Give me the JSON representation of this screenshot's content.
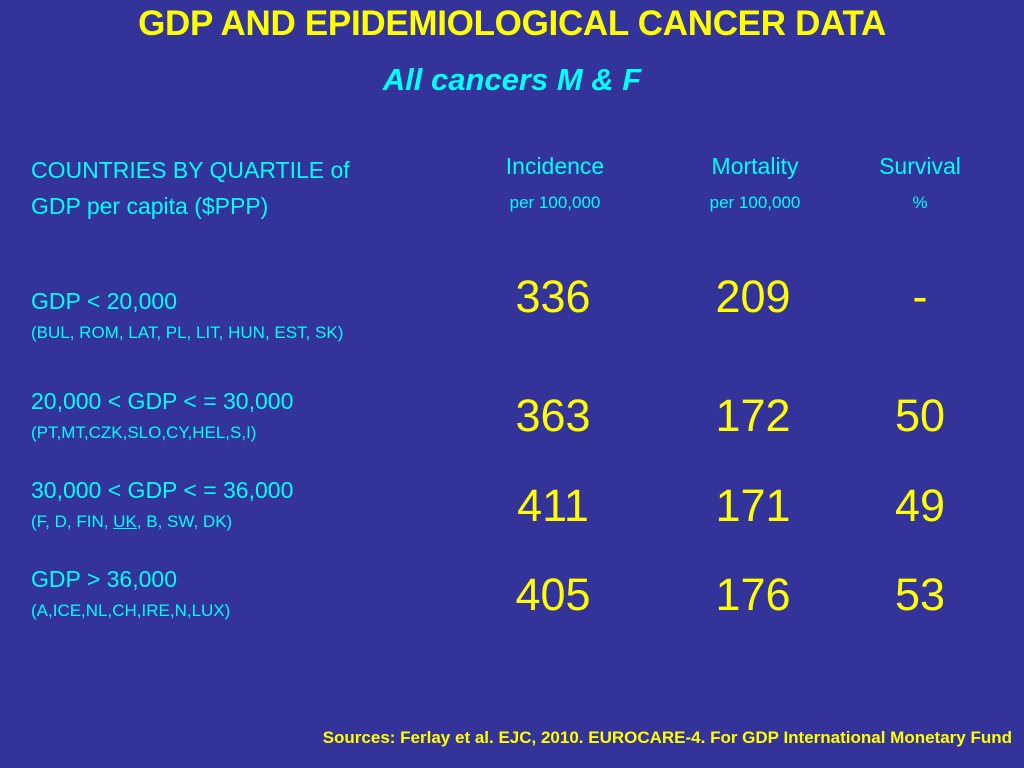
{
  "title": "GDP AND EPIDEMIOLOGICAL CANCER DATA",
  "subtitle": "All cancers M & F",
  "header": {
    "countries_line1": "COUNTRIES BY QUARTILE of",
    "countries_line2": "GDP per capita ($PPP)",
    "incidence": "Incidence",
    "incidence_unit": "per 100,000",
    "mortality": "Mortality",
    "mortality_unit": "per 100,000",
    "survival": "Survival",
    "survival_unit": "%"
  },
  "rows": [
    {
      "gdp": "GDP < 20,000",
      "countries": "(BUL, ROM, LAT, PL, LIT, HUN, EST, SK)",
      "incidence": "336",
      "mortality": "209",
      "survival": "-"
    },
    {
      "gdp": "20,000 < GDP < = 30,000",
      "countries": "(PT,MT,CZK,SLO,CY,HEL,S,I)",
      "incidence": "363",
      "mortality": "172",
      "survival": "50"
    },
    {
      "gdp": "30,000 < GDP < = 36,000",
      "countries_pre": "(F, D, FIN, ",
      "countries_underlined": "UK",
      "countries_post": ", B, SW, DK)",
      "incidence": "411",
      "mortality": "171",
      "survival": "49"
    },
    {
      "gdp": "GDP > 36,000",
      "countries": "(A,ICE,NL,CH,IRE,N,LUX)",
      "incidence": "405",
      "mortality": "176",
      "survival": "53"
    }
  ],
  "sources": "Sources: Ferlay et al. EJC, 2010. EUROCARE-4. For GDP  International Monetary Fund",
  "colors": {
    "background": "#333399",
    "title": "#ffff00",
    "text": "#00ffff",
    "values": "#ffff00"
  }
}
